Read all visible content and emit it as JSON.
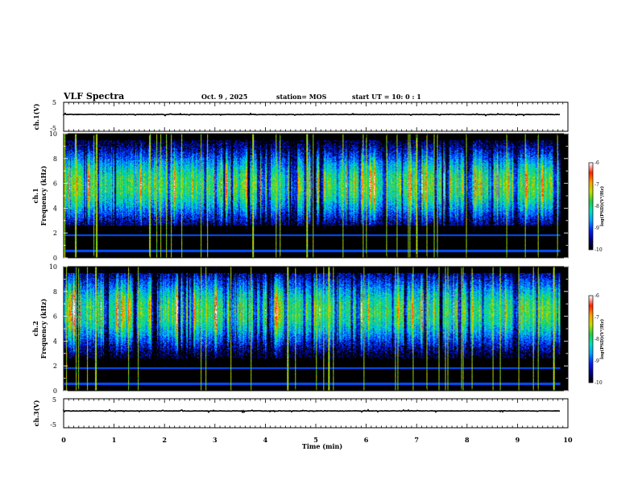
{
  "header": {
    "title": "VLF Spectra",
    "date": "Oct. 9 , 2025",
    "station": "station= MOS",
    "start_time": "start UT = 10: 0 : 1"
  },
  "chart_data": [
    {
      "type": "line",
      "name": "ch1-waveform",
      "ylabel": "ch.1(V)",
      "ylim": [
        -5,
        5
      ],
      "yticks": [
        "5",
        "-5"
      ],
      "xlim": [
        0,
        10
      ],
      "series": [
        {
          "name": "ch.1",
          "baseline": 0
        }
      ]
    },
    {
      "type": "heatmap",
      "name": "ch1-spectrogram",
      "ylabel": "ch.1",
      "ylabel2": "Frequency (kHz)",
      "ylim": [
        0,
        10
      ],
      "yticks": [
        "0",
        "2",
        "4",
        "6",
        "8",
        "10"
      ],
      "xlim": [
        0,
        10
      ],
      "data_extent_min": 9.85,
      "colorbar": {
        "label": "log(PSD)(V²/Hz)",
        "range": [
          -10,
          -6
        ],
        "ticks": [
          "-6",
          "-7",
          "-8",
          "-9",
          "-10"
        ]
      },
      "emission_band_khz": [
        2.5,
        9.2
      ],
      "lines_khz": [
        0.5,
        1.8
      ]
    },
    {
      "type": "heatmap",
      "name": "ch2-spectrogram",
      "ylabel": "ch.2",
      "ylabel2": "Frequency (kHz)",
      "ylim": [
        0,
        10
      ],
      "yticks": [
        "0",
        "2",
        "4",
        "6",
        "8",
        "10"
      ],
      "xlim": [
        0,
        10
      ],
      "data_extent_min": 9.85,
      "colorbar": {
        "label": "log(PSD)(V²/Hz)",
        "range": [
          -10,
          -6
        ],
        "ticks": [
          "-6",
          "-7",
          "-8",
          "-9",
          "-10"
        ]
      },
      "emission_band_khz": [
        3.0,
        9.8
      ],
      "lines_khz": [
        0.5,
        1.8
      ]
    },
    {
      "type": "line",
      "name": "ch3-waveform",
      "ylabel": "ch.3(V)",
      "ylim": [
        -5,
        5
      ],
      "yticks": [
        "5",
        "-5"
      ],
      "xlim": [
        0,
        10
      ],
      "series": [
        {
          "name": "ch.3",
          "baseline": 0
        }
      ]
    }
  ],
  "xaxis": {
    "label": "Time (min)",
    "ticks": [
      "0",
      "1",
      "2",
      "3",
      "4",
      "5",
      "6",
      "7",
      "8",
      "9",
      "10"
    ]
  },
  "colors": {
    "scale": [
      "#000000",
      "#000080",
      "#0020ff",
      "#00a0ff",
      "#00e0c0",
      "#20d040",
      "#c0e000",
      "#ffa000",
      "#ff2000",
      "#ffffff"
    ]
  }
}
